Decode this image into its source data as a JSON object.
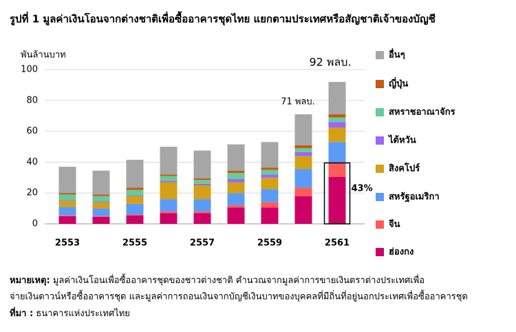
{
  "chart_data": {
    "type": "bar",
    "stacked": true,
    "title": "รูปที่ 1 มูลค่าเงินโอนจากต่างชาติเพื่อซื้ออาคารชุดไทย แยกตามประเทศหรือสัญชาติเจ้าของบัญชี",
    "y_label": "พันล้านบาท",
    "categories": [
      "2553",
      null,
      "2555",
      null,
      "2557",
      null,
      "2559",
      null,
      "2561"
    ],
    "series": [
      {
        "name": "ฮ่องกง",
        "color": "#cc0066",
        "values": [
          5,
          4.5,
          5.5,
          7,
          7,
          10.5,
          10.5,
          18,
          30.5
        ]
      },
      {
        "name": "จีน",
        "color": "#ff5b5b",
        "values": [
          0.5,
          0.5,
          0.5,
          1,
          1,
          1.5,
          3.5,
          5.5,
          9
        ]
      },
      {
        "name": "สหรัฐอเมริกา",
        "color": "#5b9bf5",
        "values": [
          5.5,
          5,
          7,
          8,
          8,
          8,
          8.5,
          12,
          13.5
        ]
      },
      {
        "name": "สิงคโปร์",
        "color": "#d4a017",
        "values": [
          4,
          4,
          5,
          11,
          9,
          7,
          7.5,
          8.5,
          9.5
        ]
      },
      {
        "name": "ไต้หวัน",
        "color": "#9966ff",
        "values": [
          0.5,
          0.5,
          0.5,
          1,
          1,
          2,
          2,
          2.5,
          3.5
        ]
      },
      {
        "name": "สหราชอาณาจักร",
        "color": "#66cc99",
        "values": [
          3.5,
          3.5,
          3.5,
          3,
          2.5,
          4,
          3,
          2.5,
          3
        ]
      },
      {
        "name": "ญี่ปุ่น",
        "color": "#c55a11",
        "values": [
          1,
          1,
          1.5,
          1,
          1,
          1.5,
          1.5,
          2,
          2
        ]
      },
      {
        "name": "อื่นๆ",
        "color": "#a6a6a6",
        "values": [
          17,
          15.5,
          18,
          18,
          18,
          17,
          16.5,
          20,
          21
        ]
      }
    ],
    "ylim": [
      0,
      100
    ],
    "yticks": [
      0,
      20,
      40,
      60,
      80,
      100
    ],
    "grid": true,
    "annotations": [
      "71 พลบ.",
      "92 พลบ.",
      "43%"
    ]
  },
  "notes": {
    "note_label": "หมายเหตุ:",
    "note_lines": [
      "มูลค่าเงินโอนเพื่อซื้ออาคารชุดของชาวต่างชาติ คำนวณจากมูลค่าการขายเงินตราต่างประเทศเพื่อ",
      "จ่ายเงินดาวน์หรือซื้ออาคารชุด และมูลค่าการถอนเงินจากบัญชีเงินบาทของบุคคลที่มีถิ่นที่อยู่นอกประเทศเพื่อซื้ออาคารชุด"
    ],
    "source_label": "ที่มา :",
    "source_text": "ธนาคารแห่งประเทศไทย"
  }
}
